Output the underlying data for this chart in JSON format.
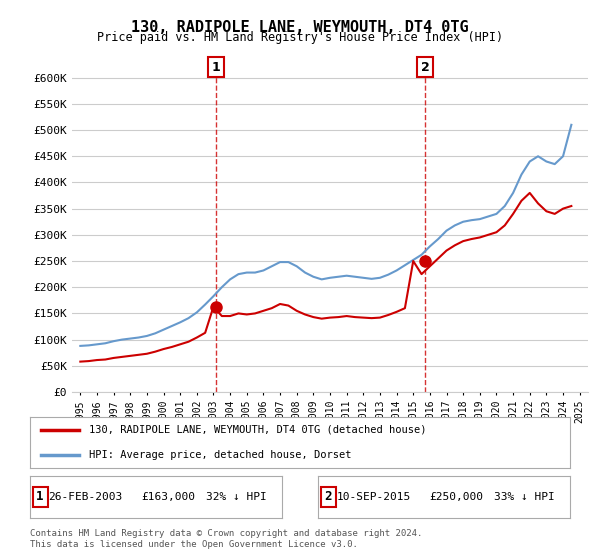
{
  "title": "130, RADIPOLE LANE, WEYMOUTH, DT4 0TG",
  "subtitle": "Price paid vs. HM Land Registry's House Price Index (HPI)",
  "legend_line1": "130, RADIPOLE LANE, WEYMOUTH, DT4 0TG (detached house)",
  "legend_line2": "HPI: Average price, detached house, Dorset",
  "footnote": "Contains HM Land Registry data © Crown copyright and database right 2024.\nThis data is licensed under the Open Government Licence v3.0.",
  "transaction1_label": "1",
  "transaction1_date": "26-FEB-2003",
  "transaction1_price": "£163,000",
  "transaction1_hpi": "32% ↓ HPI",
  "transaction2_label": "2",
  "transaction2_date": "10-SEP-2015",
  "transaction2_price": "£250,000",
  "transaction2_hpi": "33% ↓ HPI",
  "red_color": "#cc0000",
  "blue_color": "#6699cc",
  "background_color": "#ffffff",
  "grid_color": "#cccccc",
  "ylim": [
    0,
    620000
  ],
  "yticks": [
    0,
    50000,
    100000,
    150000,
    200000,
    250000,
    300000,
    350000,
    400000,
    450000,
    500000,
    550000,
    600000
  ],
  "ytick_labels": [
    "£0",
    "£50K",
    "£100K",
    "£150K",
    "£200K",
    "£250K",
    "£300K",
    "£350K",
    "£400K",
    "£450K",
    "£500K",
    "£550K",
    "£600K"
  ],
  "hpi_years": [
    1995,
    1995.5,
    1996,
    1996.5,
    1997,
    1997.5,
    1998,
    1998.5,
    1999,
    1999.5,
    2000,
    2000.5,
    2001,
    2001.5,
    2002,
    2002.5,
    2003,
    2003.5,
    2004,
    2004.5,
    2005,
    2005.5,
    2006,
    2006.5,
    2007,
    2007.5,
    2008,
    2008.5,
    2009,
    2009.5,
    2010,
    2010.5,
    2011,
    2011.5,
    2012,
    2012.5,
    2013,
    2013.5,
    2014,
    2014.5,
    2015,
    2015.5,
    2016,
    2016.5,
    2017,
    2017.5,
    2018,
    2018.5,
    2019,
    2019.5,
    2020,
    2020.5,
    2021,
    2021.5,
    2022,
    2022.5,
    2023,
    2023.5,
    2024,
    2024.5
  ],
  "hpi_values": [
    88000,
    89000,
    91000,
    93000,
    97000,
    100000,
    102000,
    104000,
    107000,
    112000,
    119000,
    126000,
    133000,
    141000,
    152000,
    167000,
    183000,
    200000,
    215000,
    225000,
    228000,
    228000,
    232000,
    240000,
    248000,
    248000,
    240000,
    228000,
    220000,
    215000,
    218000,
    220000,
    222000,
    220000,
    218000,
    216000,
    218000,
    224000,
    232000,
    242000,
    252000,
    262000,
    278000,
    292000,
    308000,
    318000,
    325000,
    328000,
    330000,
    335000,
    340000,
    355000,
    380000,
    415000,
    440000,
    450000,
    440000,
    435000,
    450000,
    510000
  ],
  "red_years": [
    1995,
    1995.5,
    1996,
    1996.5,
    1997,
    1997.5,
    1998,
    1998.5,
    1999,
    1999.5,
    2000,
    2000.5,
    2001,
    2001.5,
    2002,
    2002.5,
    2003,
    2003.5,
    2004,
    2004.5,
    2005,
    2005.5,
    2006,
    2006.5,
    2007,
    2007.5,
    2008,
    2008.5,
    2009,
    2009.5,
    2010,
    2010.5,
    2011,
    2011.5,
    2012,
    2012.5,
    2013,
    2013.5,
    2014,
    2014.5,
    2015,
    2015.5,
    2016,
    2016.5,
    2017,
    2017.5,
    2018,
    2018.5,
    2019,
    2019.5,
    2020,
    2020.5,
    2021,
    2021.5,
    2022,
    2022.5,
    2023,
    2023.5,
    2024,
    2024.5
  ],
  "red_values": [
    58000,
    59000,
    61000,
    62000,
    65000,
    67000,
    69000,
    71000,
    73000,
    77000,
    82000,
    86000,
    91000,
    96000,
    104000,
    113000,
    163000,
    145000,
    145000,
    150000,
    148000,
    150000,
    155000,
    160000,
    168000,
    165000,
    155000,
    148000,
    143000,
    140000,
    142000,
    143000,
    145000,
    143000,
    142000,
    141000,
    142000,
    147000,
    153000,
    160000,
    250000,
    225000,
    240000,
    255000,
    270000,
    280000,
    288000,
    292000,
    295000,
    300000,
    305000,
    318000,
    340000,
    365000,
    380000,
    360000,
    345000,
    340000,
    350000,
    355000
  ],
  "marker1_x": 2003.15,
  "marker1_y": 163000,
  "marker2_x": 2015.7,
  "marker2_y": 250000,
  "xlim": [
    1994.5,
    2025.5
  ],
  "xtick_years": [
    1995,
    1996,
    1997,
    1998,
    1999,
    2000,
    2001,
    2002,
    2003,
    2004,
    2005,
    2006,
    2007,
    2008,
    2009,
    2010,
    2011,
    2012,
    2013,
    2014,
    2015,
    2016,
    2017,
    2018,
    2019,
    2020,
    2021,
    2022,
    2023,
    2024,
    2025
  ]
}
